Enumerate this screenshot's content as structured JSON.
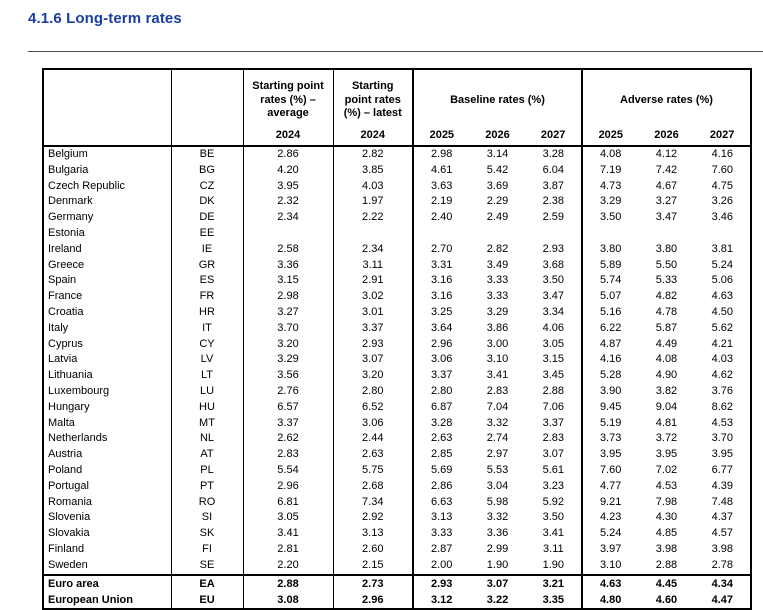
{
  "page": {
    "title": "4.1.6 Long-term rates"
  },
  "colors": {
    "title_blue": "#1B3FA0",
    "table_border": "#000000",
    "background": "#ffffff"
  },
  "table": {
    "header": {
      "start_avg": "Starting point rates (%) – average",
      "start_latest": "Starting point rates (%) – latest",
      "year_2024": "2024",
      "baseline": "Baseline rates (%)",
      "adverse": "Adverse rates (%)",
      "years": [
        "2025",
        "2026",
        "2027"
      ]
    },
    "rows": [
      {
        "name": "Belgium",
        "code": "BE",
        "values": [
          "2.86",
          "2.82",
          "2.98",
          "3.14",
          "3.28",
          "4.08",
          "4.12",
          "4.16"
        ],
        "bold": false,
        "rule_above": false
      },
      {
        "name": "Bulgaria",
        "code": "BG",
        "values": [
          "4.20",
          "3.85",
          "4.61",
          "5.42",
          "6.04",
          "7.19",
          "7.42",
          "7.60"
        ],
        "bold": false,
        "rule_above": false
      },
      {
        "name": "Czech Republic",
        "code": "CZ",
        "values": [
          "3.95",
          "4.03",
          "3.63",
          "3.69",
          "3.87",
          "4.73",
          "4.67",
          "4.75"
        ],
        "bold": false,
        "rule_above": false
      },
      {
        "name": "Denmark",
        "code": "DK",
        "values": [
          "2.32",
          "1.97",
          "2.19",
          "2.29",
          "2.38",
          "3.29",
          "3.27",
          "3.26"
        ],
        "bold": false,
        "rule_above": false
      },
      {
        "name": "Germany",
        "code": "DE",
        "values": [
          "2.34",
          "2.22",
          "2.40",
          "2.49",
          "2.59",
          "3.50",
          "3.47",
          "3.46"
        ],
        "bold": false,
        "rule_above": false
      },
      {
        "name": "Estonia",
        "code": "EE",
        "values": [
          "",
          "",
          "",
          "",
          "",
          "",
          "",
          ""
        ],
        "bold": false,
        "rule_above": false
      },
      {
        "name": "Ireland",
        "code": "IE",
        "values": [
          "2.58",
          "2.34",
          "2.70",
          "2.82",
          "2.93",
          "3.80",
          "3.80",
          "3.81"
        ],
        "bold": false,
        "rule_above": false
      },
      {
        "name": "Greece",
        "code": "GR",
        "values": [
          "3.36",
          "3.11",
          "3.31",
          "3.49",
          "3.68",
          "5.89",
          "5.50",
          "5.24"
        ],
        "bold": false,
        "rule_above": false
      },
      {
        "name": "Spain",
        "code": "ES",
        "values": [
          "3.15",
          "2.91",
          "3.16",
          "3.33",
          "3.50",
          "5.74",
          "5.33",
          "5.06"
        ],
        "bold": false,
        "rule_above": false
      },
      {
        "name": "France",
        "code": "FR",
        "values": [
          "2.98",
          "3.02",
          "3.16",
          "3.33",
          "3.47",
          "5.07",
          "4.82",
          "4.63"
        ],
        "bold": false,
        "rule_above": false
      },
      {
        "name": "Croatia",
        "code": "HR",
        "values": [
          "3.27",
          "3.01",
          "3.25",
          "3.29",
          "3.34",
          "5.16",
          "4.78",
          "4.50"
        ],
        "bold": false,
        "rule_above": false
      },
      {
        "name": "Italy",
        "code": "IT",
        "values": [
          "3.70",
          "3.37",
          "3.64",
          "3.86",
          "4.06",
          "6.22",
          "5.87",
          "5.62"
        ],
        "bold": false,
        "rule_above": false
      },
      {
        "name": "Cyprus",
        "code": "CY",
        "values": [
          "3.20",
          "2.93",
          "2.96",
          "3.00",
          "3.05",
          "4.87",
          "4.49",
          "4.21"
        ],
        "bold": false,
        "rule_above": false
      },
      {
        "name": "Latvia",
        "code": "LV",
        "values": [
          "3.29",
          "3.07",
          "3.06",
          "3.10",
          "3.15",
          "4.16",
          "4.08",
          "4.03"
        ],
        "bold": false,
        "rule_above": false
      },
      {
        "name": "Lithuania",
        "code": "LT",
        "values": [
          "3.56",
          "3.20",
          "3.37",
          "3.41",
          "3.45",
          "5.28",
          "4.90",
          "4.62"
        ],
        "bold": false,
        "rule_above": false
      },
      {
        "name": "Luxembourg",
        "code": "LU",
        "values": [
          "2.76",
          "2.80",
          "2.80",
          "2.83",
          "2.88",
          "3.90",
          "3.82",
          "3.76"
        ],
        "bold": false,
        "rule_above": false
      },
      {
        "name": "Hungary",
        "code": "HU",
        "values": [
          "6.57",
          "6.52",
          "6.87",
          "7.04",
          "7.06",
          "9.45",
          "9.04",
          "8.62"
        ],
        "bold": false,
        "rule_above": false
      },
      {
        "name": "Malta",
        "code": "MT",
        "values": [
          "3.37",
          "3.06",
          "3.28",
          "3.32",
          "3.37",
          "5.19",
          "4.81",
          "4.53"
        ],
        "bold": false,
        "rule_above": false
      },
      {
        "name": "Netherlands",
        "code": "NL",
        "values": [
          "2.62",
          "2.44",
          "2.63",
          "2.74",
          "2.83",
          "3.73",
          "3.72",
          "3.70"
        ],
        "bold": false,
        "rule_above": false
      },
      {
        "name": "Austria",
        "code": "AT",
        "values": [
          "2.83",
          "2.63",
          "2.85",
          "2.97",
          "3.07",
          "3.95",
          "3.95",
          "3.95"
        ],
        "bold": false,
        "rule_above": false
      },
      {
        "name": "Poland",
        "code": "PL",
        "values": [
          "5.54",
          "5.75",
          "5.69",
          "5.53",
          "5.61",
          "7.60",
          "7.02",
          "6.77"
        ],
        "bold": false,
        "rule_above": false
      },
      {
        "name": "Portugal",
        "code": "PT",
        "values": [
          "2.96",
          "2.68",
          "2.86",
          "3.04",
          "3.23",
          "4.77",
          "4.53",
          "4.39"
        ],
        "bold": false,
        "rule_above": false
      },
      {
        "name": "Romania",
        "code": "RO",
        "values": [
          "6.81",
          "7.34",
          "6.63",
          "5.98",
          "5.92",
          "9.21",
          "7.98",
          "7.48"
        ],
        "bold": false,
        "rule_above": false
      },
      {
        "name": "Slovenia",
        "code": "SI",
        "values": [
          "3.05",
          "2.92",
          "3.13",
          "3.32",
          "3.50",
          "4.23",
          "4.30",
          "4.37"
        ],
        "bold": false,
        "rule_above": false
      },
      {
        "name": "Slovakia",
        "code": "SK",
        "values": [
          "3.41",
          "3.13",
          "3.33",
          "3.36",
          "3.41",
          "5.24",
          "4.85",
          "4.57"
        ],
        "bold": false,
        "rule_above": false
      },
      {
        "name": "Finland",
        "code": "FI",
        "values": [
          "2.81",
          "2.60",
          "2.87",
          "2.99",
          "3.11",
          "3.97",
          "3.98",
          "3.98"
        ],
        "bold": false,
        "rule_above": false
      },
      {
        "name": "Sweden",
        "code": "SE",
        "values": [
          "2.20",
          "2.15",
          "2.00",
          "1.90",
          "1.90",
          "3.10",
          "2.88",
          "2.78"
        ],
        "bold": false,
        "rule_above": false
      },
      {
        "name": "Euro area",
        "code": "EA",
        "values": [
          "2.88",
          "2.73",
          "2.93",
          "3.07",
          "3.21",
          "4.63",
          "4.45",
          "4.34"
        ],
        "bold": true,
        "rule_above": true
      },
      {
        "name": "European Union",
        "code": "EU",
        "values": [
          "3.08",
          "2.96",
          "3.12",
          "3.22",
          "3.35",
          "4.80",
          "4.60",
          "4.47"
        ],
        "bold": true,
        "rule_above": false
      }
    ]
  }
}
